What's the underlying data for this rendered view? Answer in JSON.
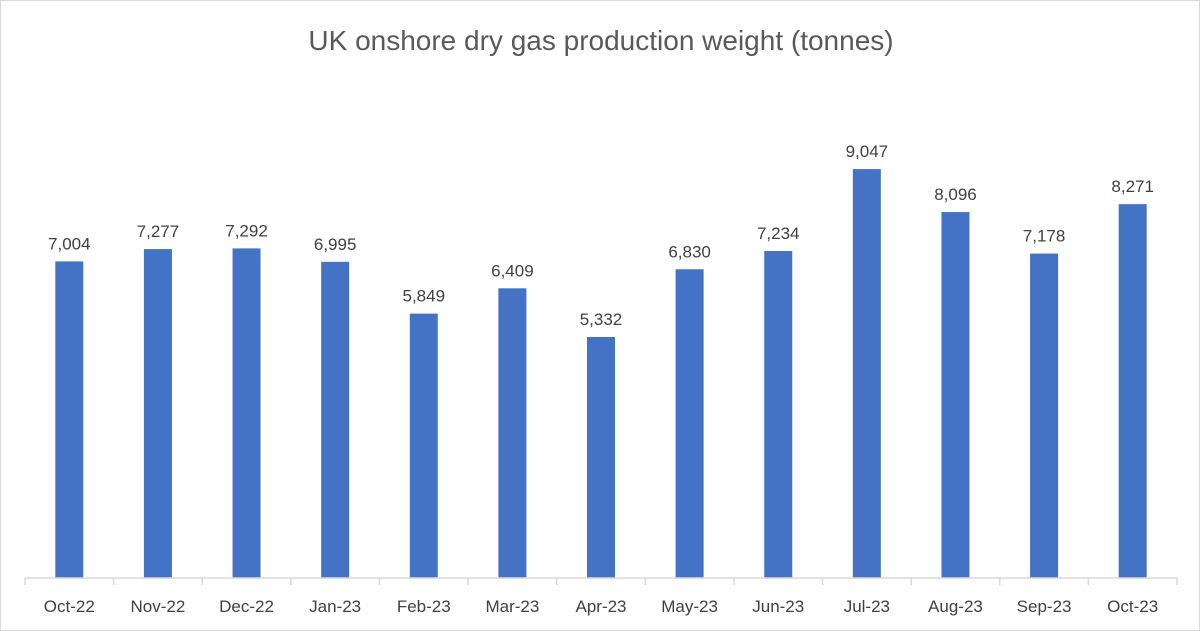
{
  "chart_data": {
    "type": "bar",
    "title": "UK onshore dry gas production weight (tonnes)",
    "xlabel": "",
    "ylabel": "",
    "categories": [
      "Oct-22",
      "Nov-22",
      "Dec-22",
      "Jan-23",
      "Feb-23",
      "Mar-23",
      "Apr-23",
      "May-23",
      "Jun-23",
      "Jul-23",
      "Aug-23",
      "Sep-23",
      "Oct-23"
    ],
    "values": [
      7004,
      7277,
      7292,
      6995,
      5849,
      6409,
      5332,
      6830,
      7234,
      9047,
      8096,
      7178,
      8271
    ],
    "data_labels": [
      "7,004",
      "7,277",
      "7,292",
      "6,995",
      "5,849",
      "6,409",
      "5,332",
      "6,830",
      "7,234",
      "9,047",
      "8,096",
      "7,178",
      "8,271"
    ],
    "ylim": [
      0,
      10000
    ],
    "grid": false,
    "legend": "none",
    "colors": {
      "bar": "#4472c4",
      "axis": "#d9d9d9",
      "text": "#404040",
      "title": "#595959"
    }
  }
}
